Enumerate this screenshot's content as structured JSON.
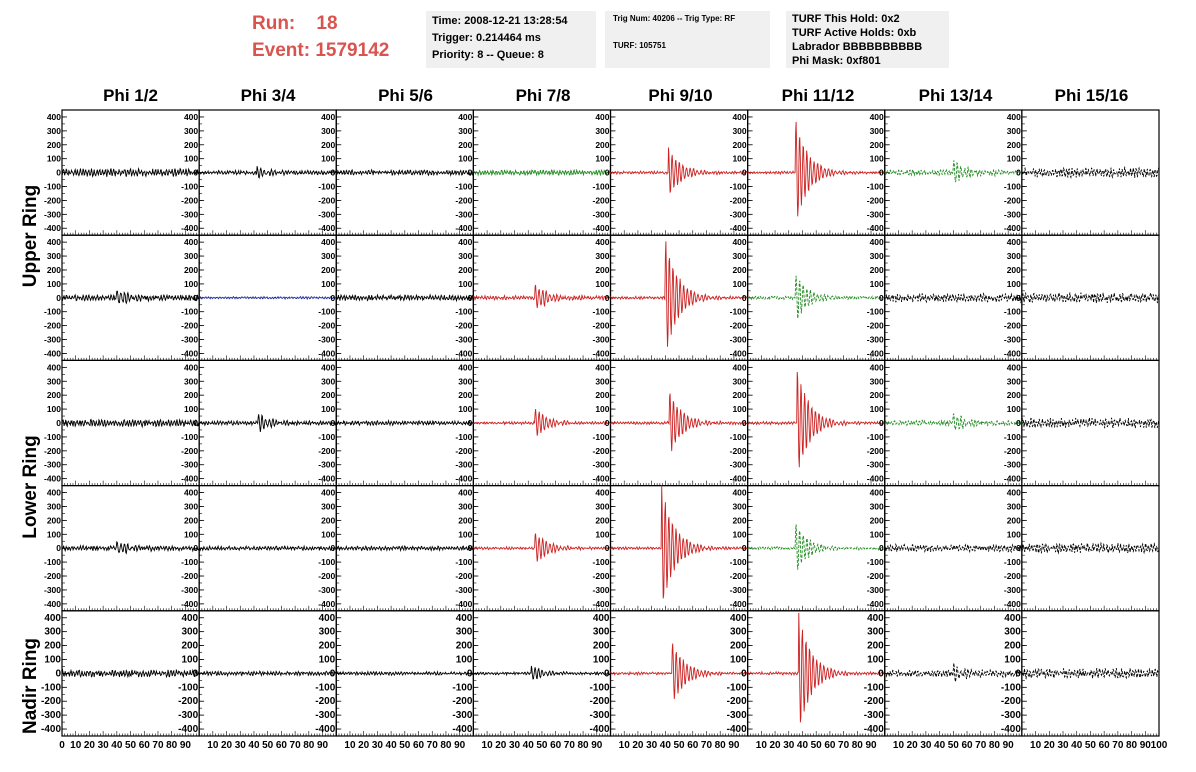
{
  "header": {
    "run_label": "Run:",
    "run_value": "18",
    "event_label": "Event:",
    "event_value": "1579142"
  },
  "info_time": {
    "line1": "Time: 2008-12-21 13:28:54",
    "line2": "Trigger: 0.214464 ms",
    "line3": "Priority: 8 -- Queue: 8"
  },
  "info_trig": {
    "line1": "Trig Num: 40206 -- Trig Type: RF",
    "line2": "TURF: 105751"
  },
  "info_turf": {
    "line1": "TURF This Hold: 0x2",
    "line2": "TURF Active Holds: 0xb",
    "line3": "Labrador BBBBBBBBBB",
    "line4": "Phi Mask: 0xf801"
  },
  "columns": [
    "Phi 1/2",
    "Phi 3/4",
    "Phi 5/6",
    "Phi 7/8",
    "Phi 9/10",
    "Phi 11/12",
    "Phi 13/14",
    "Phi 15/16"
  ],
  "ring_labels": {
    "upper": "Upper Ring",
    "lower": "Lower Ring",
    "nadir": "Nadir Ring"
  },
  "colors": {
    "black": "#000000",
    "red": "#cc2222",
    "green": "#228b22",
    "blue": "#1f2a9e"
  },
  "chart_data": {
    "type": "line",
    "grid_rows": 5,
    "grid_cols": 8,
    "ylim": [
      -450,
      450
    ],
    "xlim": [
      0,
      100
    ],
    "y_ticks": [
      -400,
      -300,
      -200,
      -100,
      0,
      100,
      200,
      300,
      400
    ],
    "x_tick_labels": [
      "0",
      "10",
      "20",
      "30",
      "40",
      "50",
      "60",
      "70",
      "80",
      "90",
      "100"
    ],
    "panels": [
      [
        {
          "color": "black",
          "noise": 28,
          "pulse": 0
        },
        {
          "color": "black",
          "noise": 15,
          "pulse": 40,
          "pulse_t": 42
        },
        {
          "color": "black",
          "noise": 18,
          "pulse": 0
        },
        {
          "color": "green",
          "noise": 18,
          "pulse": 0
        },
        {
          "color": "red",
          "noise": 10,
          "pulse": 180,
          "pulse_t": 42
        },
        {
          "color": "red",
          "noise": 10,
          "pulse": 380,
          "pulse_t": 35
        },
        {
          "color": "green",
          "noise": 20,
          "pulse": 80,
          "pulse_t": 50,
          "dashed": true
        },
        {
          "color": "black",
          "noise": 35,
          "pulse": 0,
          "dashed": true
        }
      ],
      [
        {
          "color": "black",
          "noise": 20,
          "pulse": 60,
          "pulse_t": 40
        },
        {
          "color": "blue",
          "noise": 8,
          "pulse": 0
        },
        {
          "color": "black",
          "noise": 20,
          "pulse": 0
        },
        {
          "color": "red",
          "noise": 15,
          "pulse": 100,
          "pulse_t": 45
        },
        {
          "color": "red",
          "noise": 10,
          "pulse": 420,
          "pulse_t": 40
        },
        {
          "color": "green",
          "noise": 12,
          "pulse": 170,
          "pulse_t": 35,
          "dashed": true
        },
        {
          "color": "black",
          "noise": 30,
          "pulse": 0,
          "dashed": true
        },
        {
          "color": "black",
          "noise": 35,
          "pulse": 0,
          "dashed": true
        }
      ],
      [
        {
          "color": "black",
          "noise": 25,
          "pulse": 0
        },
        {
          "color": "black",
          "noise": 15,
          "pulse": 60,
          "pulse_t": 43
        },
        {
          "color": "black",
          "noise": 15,
          "pulse": 0
        },
        {
          "color": "red",
          "noise": 10,
          "pulse": 110,
          "pulse_t": 45
        },
        {
          "color": "red",
          "noise": 10,
          "pulse": 230,
          "pulse_t": 43
        },
        {
          "color": "red",
          "noise": 10,
          "pulse": 400,
          "pulse_t": 36
        },
        {
          "color": "green",
          "noise": 18,
          "pulse": 70,
          "pulse_t": 50,
          "dashed": true
        },
        {
          "color": "black",
          "noise": 35,
          "pulse": 0,
          "dashed": true
        }
      ],
      [
        {
          "color": "black",
          "noise": 18,
          "pulse": 50,
          "pulse_t": 40
        },
        {
          "color": "black",
          "noise": 15,
          "pulse": 0
        },
        {
          "color": "black",
          "noise": 15,
          "pulse": 0
        },
        {
          "color": "red",
          "noise": 10,
          "pulse": 120,
          "pulse_t": 45
        },
        {
          "color": "red",
          "noise": 10,
          "pulse": 460,
          "pulse_t": 37
        },
        {
          "color": "green",
          "noise": 10,
          "pulse": 180,
          "pulse_t": 35,
          "dashed": true
        },
        {
          "color": "black",
          "noise": 25,
          "pulse": 0,
          "dashed": true
        },
        {
          "color": "black",
          "noise": 35,
          "pulse": 0,
          "dashed": true
        }
      ],
      [
        {
          "color": "black",
          "noise": 25,
          "pulse": 0
        },
        {
          "color": "black",
          "noise": 15,
          "pulse": 0
        },
        {
          "color": "black",
          "noise": 12,
          "pulse": 0
        },
        {
          "color": "black",
          "noise": 10,
          "pulse": 60,
          "pulse_t": 42
        },
        {
          "color": "red",
          "noise": 10,
          "pulse": 230,
          "pulse_t": 45
        },
        {
          "color": "red",
          "noise": 10,
          "pulse": 450,
          "pulse_t": 37
        },
        {
          "color": "black",
          "noise": 25,
          "pulse": 60,
          "pulse_t": 50,
          "dashed": true
        },
        {
          "color": "black",
          "noise": 35,
          "pulse": 0,
          "dashed": true
        }
      ]
    ]
  }
}
